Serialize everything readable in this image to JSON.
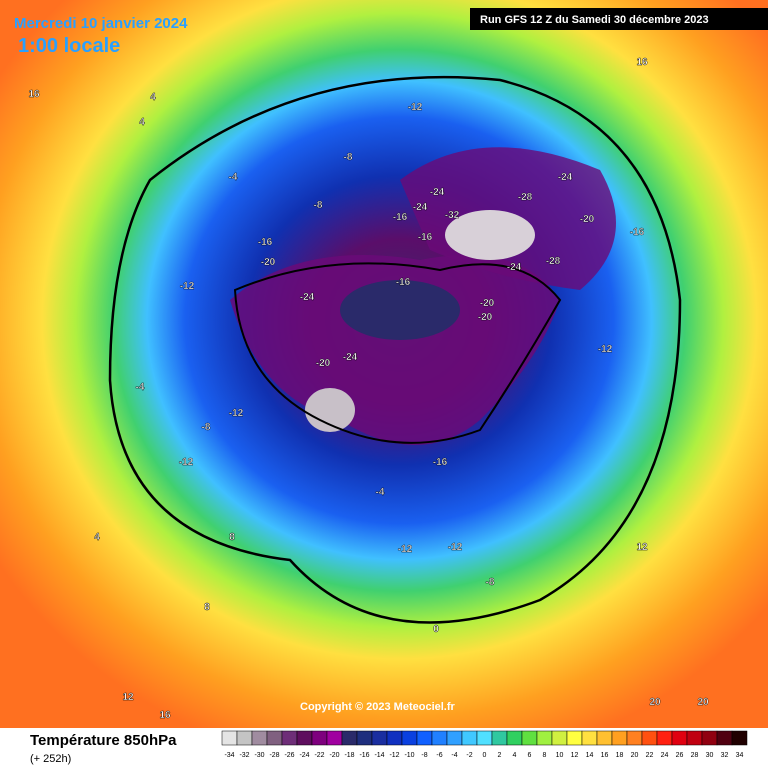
{
  "header": {
    "title": "Mercredi 10 janvier 2024",
    "time": "1:00 locale",
    "run": "Run GFS 12 Z du Samedi 30 décembre 2023"
  },
  "copyright": "Copyright © 2023 Meteociel.fr",
  "legend": {
    "title": "Température 850hPa",
    "subtitle": "(+ 252h)",
    "ticks": [
      -34,
      -32,
      -30,
      -28,
      -26,
      -24,
      -22,
      -20,
      -18,
      -16,
      -14,
      -12,
      -10,
      -8,
      -6,
      -4,
      -2,
      0,
      2,
      4,
      6,
      8,
      10,
      12,
      14,
      16,
      18,
      20,
      22,
      24,
      26,
      28,
      30,
      32,
      34
    ],
    "colors": [
      "#e4e4e4",
      "#c4c4c4",
      "#a08ca0",
      "#806080",
      "#6e2e78",
      "#5e0e5e",
      "#7e007e",
      "#a000a0",
      "#2a2a6a",
      "#1e2e7e",
      "#1a2ea0",
      "#1030c0",
      "#0a40e0",
      "#1060ff",
      "#2080ff",
      "#30a0ff",
      "#40c8ff",
      "#50e0ff",
      "#30c8a0",
      "#30d060",
      "#60e040",
      "#a0f040",
      "#d0f040",
      "#ffff40",
      "#ffe040",
      "#ffc030",
      "#ffa020",
      "#ff8020",
      "#ff5010",
      "#ff2010",
      "#e00010",
      "#c00010",
      "#900010",
      "#500010",
      "#200000"
    ]
  },
  "map_labels": [
    -12,
    -24,
    -32,
    -28,
    -24,
    -20,
    -16,
    -16,
    -16,
    -24,
    -20,
    -24,
    -20,
    -12,
    -8,
    -8,
    -4,
    -12,
    -16,
    -20,
    -24,
    -20,
    -28,
    -24,
    -12,
    -8,
    -12,
    -12,
    -8,
    -12,
    -4,
    0,
    4,
    4,
    8,
    12,
    16,
    16,
    16,
    20,
    20,
    12,
    4,
    8,
    -4,
    -16,
    -16
  ]
}
